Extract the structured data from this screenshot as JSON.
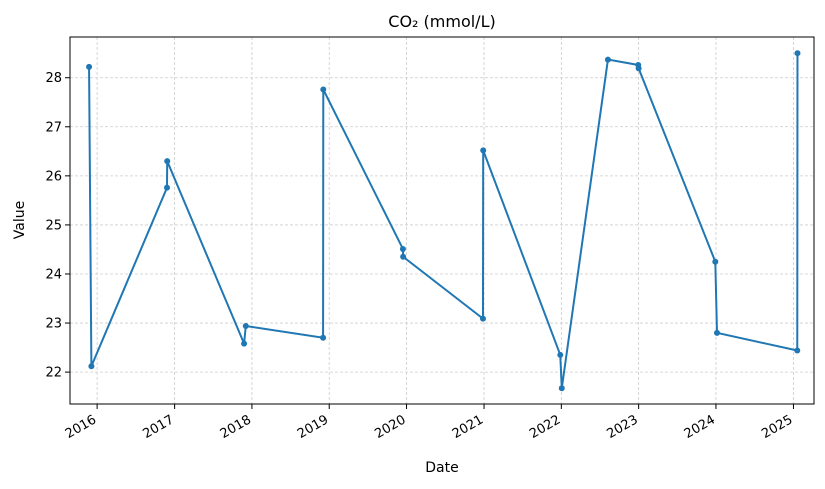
{
  "chart_data": {
    "type": "line",
    "title": "CO₂ (mmol/L)",
    "xlabel": "Date",
    "ylabel": "Value",
    "x_ticks": [
      "2016",
      "2017",
      "2018",
      "2019",
      "2020",
      "2021",
      "2022",
      "2023",
      "2024",
      "2025"
    ],
    "y_ticks": [
      22,
      23,
      24,
      25,
      26,
      27,
      28
    ],
    "xlim": [
      "2015-08-26",
      "2025-04-08"
    ],
    "ylim": [
      21.35,
      28.83
    ],
    "grid": true,
    "series": [
      {
        "color": "#1f77b4",
        "points": [
          {
            "x": "2015-11-24",
            "y": 28.22
          },
          {
            "x": "2015-12-05",
            "y": 22.12
          },
          {
            "x": "2016-11-26",
            "y": 25.76
          },
          {
            "x": "2016-11-27",
            "y": 26.3
          },
          {
            "x": "2017-11-25",
            "y": 22.58
          },
          {
            "x": "2017-12-03",
            "y": 22.94
          },
          {
            "x": "2018-12-03",
            "y": 22.7
          },
          {
            "x": "2018-12-04",
            "y": 27.76
          },
          {
            "x": "2019-12-15",
            "y": 24.51
          },
          {
            "x": "2019-12-16",
            "y": 24.35
          },
          {
            "x": "2020-12-27",
            "y": 23.09
          },
          {
            "x": "2020-12-28",
            "y": 26.52
          },
          {
            "x": "2021-12-27",
            "y": 22.35
          },
          {
            "x": "2022-01-03",
            "y": 21.67
          },
          {
            "x": "2022-08-09",
            "y": 28.37
          },
          {
            "x": "2022-12-30",
            "y": 28.26
          },
          {
            "x": "2023-01-01",
            "y": 28.19
          },
          {
            "x": "2023-12-29",
            "y": 24.25
          },
          {
            "x": "2024-01-06",
            "y": 22.8
          },
          {
            "x": "2025-01-19",
            "y": 22.44
          },
          {
            "x": "2025-01-20",
            "y": 28.5
          }
        ]
      }
    ]
  }
}
